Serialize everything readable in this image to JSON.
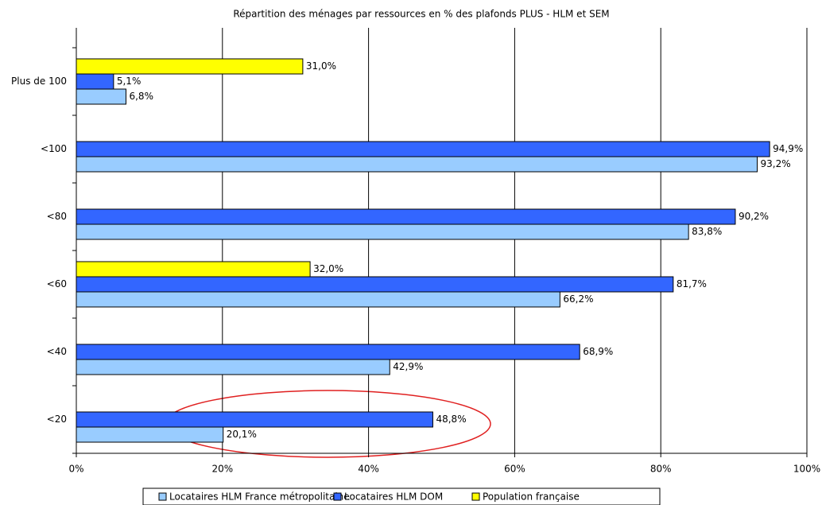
{
  "chart_data": {
    "type": "barh",
    "title": "Répartition des ménages par ressources en % des plafonds PLUS - HLM et SEM",
    "categories": [
      "Plus de 100",
      "<100",
      "<80",
      "<60",
      "<40",
      "<20"
    ],
    "series": [
      {
        "name": "Locataires HLM France métropolitaine",
        "color": "#99ccff",
        "values": [
          6.8,
          93.2,
          83.8,
          66.2,
          42.9,
          20.1
        ],
        "value_labels": [
          "6,8%",
          "93,2%",
          "83,8%",
          "66,2%",
          "42,9%",
          "20,1%"
        ]
      },
      {
        "name": "Locataires HLM DOM",
        "color": "#3366ff",
        "values": [
          5.1,
          94.9,
          90.2,
          81.7,
          68.9,
          48.8
        ],
        "value_labels": [
          "5,1%",
          "94,9%",
          "90,2%",
          "81,7%",
          "68,9%",
          "48,8%"
        ]
      },
      {
        "name": "Population française",
        "color": "#ffff00",
        "values": [
          31.0,
          null,
          null,
          32.0,
          null,
          null
        ],
        "value_labels": [
          "31,0%",
          null,
          null,
          "32,0%",
          null,
          null
        ]
      }
    ],
    "xlim": [
      0,
      100
    ],
    "xticks": [
      {
        "value": 0,
        "label": "0%"
      },
      {
        "value": 20,
        "label": "20%"
      },
      {
        "value": 40,
        "label": "40%"
      },
      {
        "value": 60,
        "label": "60%"
      },
      {
        "value": 80,
        "label": "80%"
      },
      {
        "value": 100,
        "label": "100%"
      }
    ],
    "grid": true,
    "legend": "bottom"
  }
}
